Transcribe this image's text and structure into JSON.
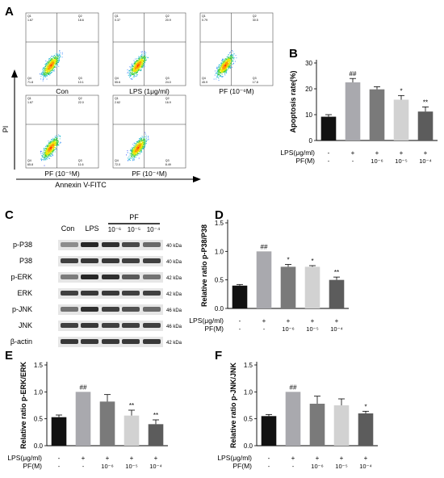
{
  "panels": {
    "A": {
      "letter": "A",
      "plots": [
        {
          "label": "Con",
          "q1": "1.67",
          "q2": "18.6",
          "q3": "71.8",
          "q4": "10.1"
        },
        {
          "label": "LPS (1μg/ml)",
          "q1": "0.37",
          "q2": "20.9",
          "q3": "55.6",
          "q4": "24.0"
        },
        {
          "label": "PF (10⁻⁶M)",
          "q1": "0.79",
          "q2": "30.5",
          "q3": "45.9",
          "q4": "17.8"
        },
        {
          "label": "PF (10⁻⁵M)",
          "q1": "1.67",
          "q2": "22.0",
          "q3": "65.8",
          "q4": "11.6"
        },
        {
          "label": "PF (10⁻⁴M)",
          "q1": "2.62",
          "q2": "16.9",
          "q3": "72.0",
          "q4": "8.49"
        }
      ],
      "quadrant_names": {
        "q1": "Q1",
        "q2": "Q2",
        "q3": "Q4",
        "q4": "Q3"
      },
      "y_axis_label": "PI",
      "x_axis_label": "Annexin V-FITC"
    },
    "C": {
      "letter": "C",
      "lane_labels": [
        "Con",
        "LPS",
        "10⁻⁶",
        "10⁻⁵",
        "10⁻⁴"
      ],
      "pf_label": "PF",
      "rows": [
        {
          "name": "p-P38",
          "kda": "40 kDa"
        },
        {
          "name": "P38",
          "kda": "40 kDa"
        },
        {
          "name": "p-ERK",
          "kda": "42 kDa"
        },
        {
          "name": "ERK",
          "kda": "42 kDa"
        },
        {
          "name": "p-JNK",
          "kda": "46 kDa"
        },
        {
          "name": "JNK",
          "kda": "46 kDa"
        },
        {
          "name": "β-actin",
          "kda": "42 kDa"
        }
      ]
    },
    "treatment_table": {
      "lps_label": "LPS(μg/ml)",
      "pf_label": "PF(M)",
      "lps_row": [
        "-",
        "+",
        "+",
        "+",
        "+"
      ],
      "pf_row": [
        "-",
        "-",
        "10⁻⁶",
        "10⁻⁵",
        "10⁻⁴"
      ]
    },
    "B": {
      "letter": "B"
    },
    "D": {
      "letter": "D"
    },
    "E": {
      "letter": "E"
    },
    "F": {
      "letter": "F"
    }
  },
  "chart_data": [
    {
      "panel": "B",
      "type": "bar",
      "ylabel": "Apoptosis rate(%)",
      "ylim": [
        0,
        30
      ],
      "yticks": [
        "0",
        "10",
        "20",
        "30"
      ],
      "values": [
        9.2,
        22.5,
        19.8,
        15.8,
        11.2
      ],
      "errors": [
        0.8,
        1.5,
        1.0,
        1.6,
        1.8
      ],
      "annotations": [
        "",
        "##",
        "",
        "*",
        "**"
      ],
      "colors": [
        "#111111",
        "#a9a9ae",
        "#7a7a7a",
        "#d2d2d2",
        "#5c5c5c"
      ]
    },
    {
      "panel": "D",
      "type": "bar",
      "ylabel": "Relative ratio p-P38/P38",
      "ylim": [
        0,
        1.5
      ],
      "yticks": [
        "0.0",
        "0.5",
        "1.0",
        "1.5"
      ],
      "values": [
        0.4,
        1.0,
        0.73,
        0.73,
        0.5
      ],
      "errors": [
        0.02,
        0.0,
        0.04,
        0.02,
        0.05
      ],
      "annotations": [
        "",
        "##",
        "*",
        "*",
        "**"
      ],
      "colors": [
        "#111111",
        "#a9a9ae",
        "#7a7a7a",
        "#d2d2d2",
        "#5c5c5c"
      ]
    },
    {
      "panel": "E",
      "type": "bar",
      "ylabel": "Relative ratio p-ERK/ERK",
      "ylim": [
        0,
        1.5
      ],
      "yticks": [
        "0.0",
        "0.5",
        "1.0",
        "1.5"
      ],
      "values": [
        0.53,
        1.0,
        0.82,
        0.56,
        0.4
      ],
      "errors": [
        0.04,
        0.0,
        0.13,
        0.1,
        0.08
      ],
      "annotations": [
        "",
        "##",
        "",
        "**",
        "**"
      ],
      "colors": [
        "#111111",
        "#a9a9ae",
        "#7a7a7a",
        "#d2d2d2",
        "#5c5c5c"
      ]
    },
    {
      "panel": "F",
      "type": "bar",
      "ylabel": "Relative ratio p-JNK/JNK",
      "ylim": [
        0,
        1.5
      ],
      "yticks": [
        "0.0",
        "0.5",
        "1.0",
        "1.5"
      ],
      "values": [
        0.55,
        1.0,
        0.78,
        0.75,
        0.6
      ],
      "errors": [
        0.03,
        0.0,
        0.14,
        0.12,
        0.04
      ],
      "annotations": [
        "",
        "##",
        "",
        "",
        "*"
      ],
      "colors": [
        "#111111",
        "#a9a9ae",
        "#7a7a7a",
        "#d2d2d2",
        "#5c5c5c"
      ]
    }
  ]
}
